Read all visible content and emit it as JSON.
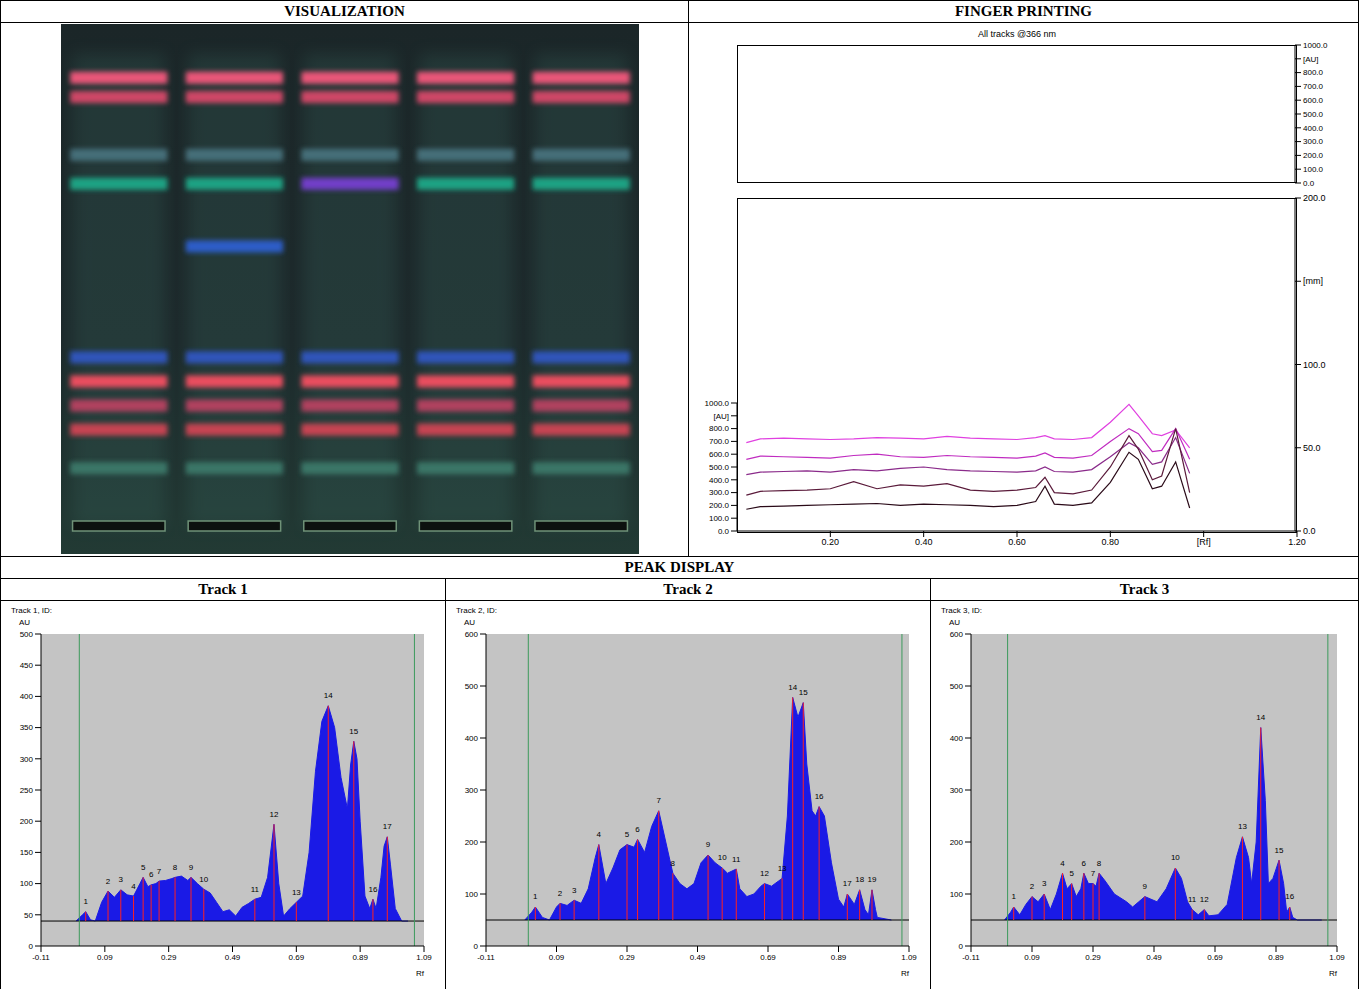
{
  "header": {
    "visualization": "VISUALIZATION",
    "fingerprinting": "FINGER PRINTING",
    "peak_display": "PEAK DISPLAY"
  },
  "plate": {
    "tracks": 5,
    "bands": [
      {
        "rf": 0.93,
        "color": "#ff5a80",
        "tracks": [
          1,
          2,
          3,
          4,
          5
        ]
      },
      {
        "rf": 0.89,
        "color": "#e0486c",
        "tracks": [
          1,
          2,
          3,
          4,
          5
        ]
      },
      {
        "rf": 0.77,
        "color": "#4a7480",
        "tracks": [
          1,
          2,
          3,
          4,
          5
        ]
      },
      {
        "rf": 0.71,
        "color": "#1fae8c",
        "tracks": [
          1,
          2,
          4,
          5
        ]
      },
      {
        "rf": 0.71,
        "color": "#7a3fd8",
        "tracks": [
          3
        ]
      },
      {
        "rf": 0.58,
        "color": "#2f62d8",
        "tracks": [
          2
        ]
      },
      {
        "rf": 0.35,
        "color": "#3058c8",
        "tracks": [
          1,
          2,
          3,
          4,
          5
        ]
      },
      {
        "rf": 0.3,
        "color": "#ff5064",
        "tracks": [
          1,
          2,
          3,
          4,
          5
        ]
      },
      {
        "rf": 0.25,
        "color": "#c04264",
        "tracks": [
          1,
          2,
          3,
          4,
          5
        ]
      },
      {
        "rf": 0.2,
        "color": "#d84454",
        "tracks": [
          1,
          2,
          3,
          4,
          5
        ]
      },
      {
        "rf": 0.12,
        "color": "#3c7c6c",
        "tracks": [
          1,
          2,
          3,
          4,
          5
        ]
      }
    ]
  },
  "chart_data": [
    {
      "type": "line",
      "title": "All tracks @366 nm",
      "x": [
        0.02,
        0.05,
        0.1,
        0.15,
        0.2,
        0.25,
        0.3,
        0.35,
        0.4,
        0.45,
        0.5,
        0.55,
        0.6,
        0.64,
        0.66,
        0.68,
        0.72,
        0.76,
        0.8,
        0.84,
        0.86,
        0.89,
        0.91,
        0.94,
        0.97
      ],
      "series": [
        {
          "color": "#e040e0",
          "values": [
            690,
            720,
            725,
            720,
            715,
            720,
            730,
            725,
            720,
            740,
            725,
            720,
            715,
            730,
            745,
            720,
            715,
            730,
            850,
            990,
            900,
            760,
            745,
            790,
            650
          ]
        },
        {
          "color": "#c02cc0",
          "values": [
            560,
            585,
            580,
            575,
            570,
            590,
            600,
            580,
            575,
            590,
            580,
            575,
            570,
            585,
            610,
            575,
            570,
            590,
            700,
            800,
            760,
            620,
            630,
            800,
            560
          ]
        },
        {
          "color": "#8a2a8a",
          "values": [
            440,
            460,
            465,
            470,
            460,
            480,
            470,
            490,
            500,
            480,
            470,
            465,
            460,
            470,
            500,
            465,
            460,
            480,
            580,
            690,
            650,
            520,
            540,
            730,
            450
          ]
        },
        {
          "color": "#5a1a3a",
          "values": [
            280,
            310,
            315,
            320,
            330,
            385,
            330,
            360,
            350,
            370,
            320,
            310,
            320,
            340,
            420,
            300,
            290,
            320,
            500,
            745,
            640,
            400,
            430,
            800,
            300
          ]
        },
        {
          "color": "#2a0a18",
          "values": [
            170,
            190,
            195,
            200,
            205,
            210,
            215,
            200,
            210,
            205,
            200,
            190,
            200,
            230,
            350,
            210,
            200,
            220,
            380,
            615,
            560,
            330,
            350,
            540,
            180
          ]
        }
      ],
      "xlim": [
        0,
        1.2
      ],
      "xticks": [
        {
          "value": 0.2,
          "label": "0.20"
        },
        {
          "value": 0.4,
          "label": "0.40"
        },
        {
          "value": 0.6,
          "label": "0.60"
        },
        {
          "value": 0.8,
          "label": "0.80"
        },
        {
          "value": 1.0,
          "label": "[Rf]"
        },
        {
          "value": 1.2,
          "label": "1.20"
        }
      ],
      "ylim": [
        0,
        1000
      ],
      "yticks": [
        {
          "value": 0,
          "label": "0.0"
        },
        {
          "value": 100,
          "label": "100.0"
        },
        {
          "value": 200,
          "label": "200.0"
        },
        {
          "value": 300,
          "label": "300.0"
        },
        {
          "value": 400,
          "label": "400.0"
        },
        {
          "value": 500,
          "label": "500.0"
        },
        {
          "value": 600,
          "label": "600.0"
        },
        {
          "value": 700,
          "label": "700.0"
        },
        {
          "value": 800,
          "label": "800.0"
        },
        {
          "value": 900,
          "label": "[AU]"
        },
        {
          "value": 1000,
          "label": "1000.0"
        }
      ],
      "y2lim": [
        0,
        200
      ],
      "y2ticks": [
        {
          "value": 0,
          "label": "0.0"
        },
        {
          "value": 50,
          "label": "50.0"
        },
        {
          "value": 100,
          "label": "100.0"
        },
        {
          "value": 150,
          "label": "[mm]"
        },
        {
          "value": 200,
          "label": "200.0"
        }
      ],
      "grid": false
    },
    {
      "type": "area",
      "title": "Track 1",
      "subtitle": "Track 1, ID:",
      "x_label": "Rf",
      "y_label": "AU",
      "color": "#1a1ae6",
      "grid": false,
      "baseline": 40,
      "integration_range": [
        0.01,
        1.06
      ],
      "x": [
        0.0,
        0.02,
        0.03,
        0.045,
        0.06,
        0.08,
        0.1,
        0.12,
        0.14,
        0.16,
        0.18,
        0.2,
        0.21,
        0.225,
        0.235,
        0.25,
        0.26,
        0.28,
        0.3,
        0.31,
        0.33,
        0.35,
        0.36,
        0.38,
        0.4,
        0.42,
        0.44,
        0.46,
        0.48,
        0.5,
        0.52,
        0.54,
        0.56,
        0.58,
        0.6,
        0.62,
        0.635,
        0.65,
        0.67,
        0.69,
        0.71,
        0.73,
        0.75,
        0.77,
        0.79,
        0.81,
        0.83,
        0.85,
        0.86,
        0.87,
        0.88,
        0.89,
        0.905,
        0.92,
        0.93,
        0.94,
        0.955,
        0.965,
        0.975,
        0.985,
        1.0,
        1.02,
        1.04
      ],
      "values": [
        40,
        50,
        55,
        42,
        40,
        70,
        88,
        78,
        90,
        82,
        80,
        100,
        110,
        95,
        98,
        100,
        104,
        105,
        108,
        110,
        112,
        105,
        110,
        100,
        91,
        85,
        70,
        55,
        58,
        48,
        62,
        68,
        75,
        78,
        110,
        195,
        100,
        48,
        60,
        70,
        80,
        150,
        280,
        360,
        385,
        350,
        270,
        220,
        290,
        328,
        300,
        200,
        80,
        60,
        75,
        60,
        110,
        160,
        175,
        130,
        60,
        40,
        40
      ],
      "peaks": {
        "labels": [
          "1",
          "2",
          "3",
          "4",
          "5",
          "6",
          "7",
          "8",
          "9",
          "10",
          "11",
          "12",
          "13",
          "14",
          "15",
          "16",
          "17"
        ],
        "x": [
          0.03,
          0.1,
          0.14,
          0.18,
          0.21,
          0.235,
          0.26,
          0.31,
          0.36,
          0.4,
          0.56,
          0.62,
          0.69,
          0.79,
          0.87,
          0.93,
          0.975
        ],
        "values": [
          55,
          88,
          90,
          80,
          110,
          98,
          104,
          110,
          110,
          91,
          75,
          195,
          70,
          385,
          328,
          75,
          175
        ]
      },
      "xlim": [
        -0.11,
        1.09
      ],
      "xticks": [
        -0.11,
        0.09,
        0.29,
        0.49,
        0.69,
        0.89,
        1.09
      ],
      "ylim": [
        0,
        500
      ],
      "yticks": [
        0,
        50,
        100,
        150,
        200,
        250,
        300,
        350,
        400,
        450,
        500
      ]
    },
    {
      "type": "area",
      "title": "Track 2",
      "subtitle": "Track 2, ID:",
      "x_label": "Rf",
      "y_label": "AU",
      "color": "#1a1ae6",
      "grid": false,
      "baseline": 50,
      "integration_range": [
        0.01,
        1.07
      ],
      "x": [
        0.0,
        0.02,
        0.03,
        0.05,
        0.07,
        0.09,
        0.1,
        0.12,
        0.14,
        0.16,
        0.18,
        0.2,
        0.21,
        0.23,
        0.25,
        0.27,
        0.29,
        0.31,
        0.32,
        0.34,
        0.36,
        0.38,
        0.4,
        0.42,
        0.44,
        0.46,
        0.48,
        0.5,
        0.52,
        0.54,
        0.56,
        0.575,
        0.6,
        0.61,
        0.63,
        0.65,
        0.67,
        0.68,
        0.7,
        0.72,
        0.73,
        0.745,
        0.76,
        0.775,
        0.79,
        0.8,
        0.815,
        0.825,
        0.835,
        0.85,
        0.87,
        0.89,
        0.905,
        0.915,
        0.935,
        0.95,
        0.965,
        0.975,
        0.985,
        0.995,
        1.0,
        1.04
      ],
      "values": [
        50,
        65,
        75,
        55,
        50,
        75,
        82,
        78,
        88,
        82,
        110,
        170,
        195,
        120,
        150,
        185,
        195,
        190,
        205,
        180,
        230,
        260,
        200,
        140,
        120,
        110,
        120,
        160,
        175,
        160,
        150,
        140,
        148,
        110,
        95,
        100,
        115,
        120,
        115,
        125,
        130,
        250,
        478,
        440,
        468,
        350,
        260,
        250,
        268,
        250,
        160,
        90,
        75,
        100,
        80,
        108,
        70,
        60,
        108,
        70,
        55,
        50
      ],
      "peaks": {
        "labels": [
          "1",
          "2",
          "3",
          "4",
          "5",
          "6",
          "7",
          "8",
          "9",
          "10",
          "11",
          "12",
          "13",
          "14",
          "15",
          "16",
          "17",
          "18",
          "19"
        ],
        "x": [
          0.03,
          0.1,
          0.14,
          0.21,
          0.29,
          0.32,
          0.38,
          0.42,
          0.52,
          0.56,
          0.6,
          0.68,
          0.73,
          0.76,
          0.79,
          0.835,
          0.915,
          0.95,
          0.985
        ],
        "values": [
          75,
          82,
          88,
          195,
          195,
          205,
          260,
          140,
          175,
          150,
          148,
          120,
          130,
          478,
          468,
          268,
          100,
          108,
          108
        ]
      },
      "xlim": [
        -0.11,
        1.09
      ],
      "xticks": [
        -0.11,
        0.09,
        0.29,
        0.49,
        0.69,
        0.89,
        1.09
      ],
      "ylim": [
        0,
        600
      ],
      "yticks": [
        0,
        100,
        200,
        300,
        400,
        500,
        600
      ]
    },
    {
      "type": "area",
      "title": "Track 3",
      "subtitle": "Track 3, ID:",
      "x_label": "Rf",
      "y_label": "AU",
      "color": "#1a1ae6",
      "grid": false,
      "baseline": 50,
      "integration_range": [
        0.01,
        1.06
      ],
      "x": [
        0.0,
        0.02,
        0.03,
        0.05,
        0.07,
        0.09,
        0.11,
        0.13,
        0.15,
        0.17,
        0.19,
        0.205,
        0.22,
        0.235,
        0.25,
        0.26,
        0.275,
        0.29,
        0.3,
        0.31,
        0.33,
        0.36,
        0.4,
        0.42,
        0.44,
        0.46,
        0.48,
        0.5,
        0.53,
        0.56,
        0.58,
        0.6,
        0.615,
        0.635,
        0.655,
        0.67,
        0.7,
        0.73,
        0.76,
        0.78,
        0.8,
        0.81,
        0.825,
        0.84,
        0.855,
        0.865,
        0.88,
        0.9,
        0.915,
        0.925,
        0.935,
        0.945,
        0.96,
        1.04
      ],
      "values": [
        50,
        65,
        75,
        60,
        80,
        95,
        85,
        100,
        70,
        100,
        140,
        110,
        120,
        95,
        110,
        140,
        120,
        120,
        115,
        140,
        125,
        100,
        85,
        75,
        85,
        95,
        90,
        85,
        110,
        150,
        130,
        85,
        70,
        60,
        70,
        58,
        60,
        80,
        170,
        210,
        170,
        120,
        200,
        420,
        280,
        120,
        130,
        165,
        120,
        65,
        75,
        55,
        50,
        50
      ],
      "peaks": {
        "labels": [
          "1",
          "2",
          "3",
          "4",
          "5",
          "6",
          "7",
          "8",
          "9",
          "10",
          "11",
          "12",
          "13",
          "14",
          "15",
          "16"
        ],
        "x": [
          0.03,
          0.09,
          0.13,
          0.19,
          0.22,
          0.26,
          0.29,
          0.31,
          0.46,
          0.56,
          0.615,
          0.655,
          0.78,
          0.84,
          0.9,
          0.935
        ],
        "values": [
          75,
          95,
          100,
          140,
          120,
          140,
          120,
          140,
          95,
          150,
          70,
          70,
          210,
          420,
          165,
          75
        ]
      },
      "xlim": [
        -0.11,
        1.09
      ],
      "xticks": [
        -0.11,
        0.09,
        0.29,
        0.49,
        0.69,
        0.89,
        1.09
      ],
      "ylim": [
        0,
        600
      ],
      "yticks": [
        0,
        100,
        200,
        300,
        400,
        500,
        600
      ]
    }
  ]
}
